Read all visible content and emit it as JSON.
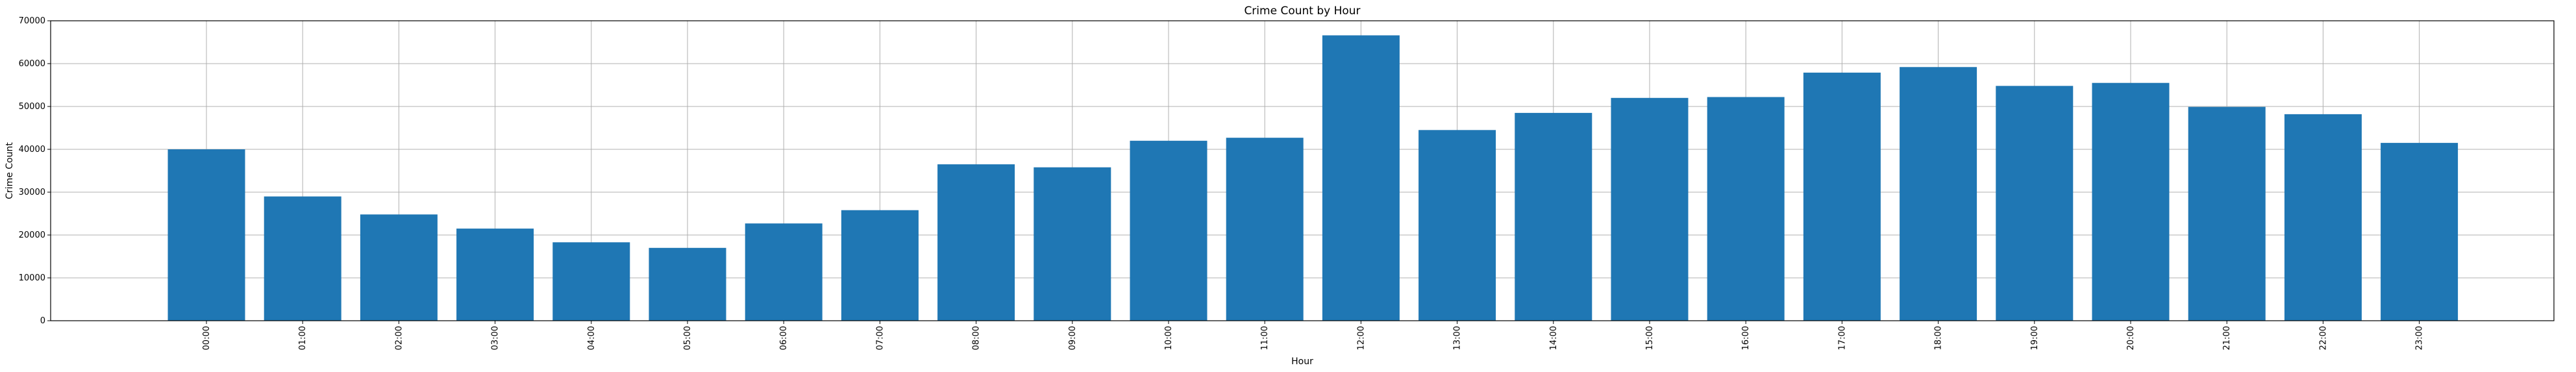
{
  "chart_data": {
    "type": "bar",
    "title": "Crime Count by Hour",
    "xlabel": "Hour",
    "ylabel": "Crime Count",
    "categories": [
      "00:00",
      "01:00",
      "02:00",
      "03:00",
      "04:00",
      "05:00",
      "06:00",
      "07:00",
      "08:00",
      "09:00",
      "10:00",
      "11:00",
      "12:00",
      "13:00",
      "14:00",
      "15:00",
      "16:00",
      "17:00",
      "18:00",
      "19:00",
      "20:00",
      "21:00",
      "22:00",
      "23:00"
    ],
    "values": [
      40000,
      29000,
      24800,
      21500,
      18300,
      17000,
      22700,
      25800,
      36500,
      35800,
      42000,
      42700,
      66600,
      44500,
      48500,
      52000,
      52200,
      57900,
      59200,
      54800,
      55500,
      49900,
      48200,
      41500
    ],
    "yticks": [
      0,
      10000,
      20000,
      30000,
      40000,
      50000,
      60000,
      70000
    ],
    "ylim": [
      0,
      70000
    ],
    "grid": true,
    "colors": {
      "bar": "#1f77b4"
    }
  }
}
